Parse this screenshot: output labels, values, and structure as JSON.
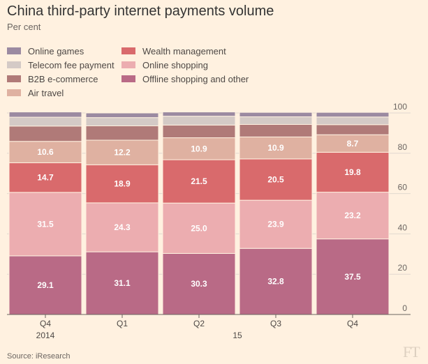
{
  "title": "China third-party internet payments volume",
  "subtitle": "Per cent",
  "source": "Source: iResearch",
  "logo": "FT",
  "chart_data": {
    "type": "bar",
    "stacked": true,
    "title": "China third-party internet payments volume",
    "ylabel": "Per cent",
    "ylim": [
      0,
      100
    ],
    "yticks": [
      0,
      20,
      40,
      60,
      80,
      100
    ],
    "categories": [
      "Q4",
      "Q1",
      "Q2",
      "Q3",
      "Q4"
    ],
    "period_labels": [
      "2014",
      "15"
    ],
    "legend": [
      {
        "name": "Online games",
        "color": "#9b8aa1"
      },
      {
        "name": "Telecom fee payment",
        "color": "#d4cac6"
      },
      {
        "name": "B2B e-commerce",
        "color": "#b07a78"
      },
      {
        "name": "Air travel",
        "color": "#dfb1a1"
      },
      {
        "name": "Wealth management",
        "color": "#d96a6c"
      },
      {
        "name": "Online shopping",
        "color": "#ecadb0"
      },
      {
        "name": "Offline shopping and other",
        "color": "#b96a86"
      }
    ],
    "series": [
      {
        "name": "Offline shopping and other",
        "color": "#b96a86",
        "values": [
          29.1,
          31.1,
          30.3,
          32.8,
          37.5
        ],
        "labeled": true
      },
      {
        "name": "Online shopping",
        "color": "#ecadb0",
        "values": [
          31.5,
          24.3,
          25.0,
          23.9,
          23.2
        ],
        "labeled": true
      },
      {
        "name": "Wealth management",
        "color": "#d96a6c",
        "values": [
          14.7,
          18.9,
          21.5,
          20.5,
          19.8
        ],
        "labeled": true
      },
      {
        "name": "Air travel",
        "color": "#dfb1a1",
        "values": [
          10.6,
          12.2,
          10.9,
          10.9,
          8.7
        ],
        "labeled": true
      },
      {
        "name": "B2B e-commerce",
        "color": "#b07a78",
        "values": [
          7.6,
          7.1,
          6.3,
          6.2,
          5.0
        ],
        "labeled": false
      },
      {
        "name": "Telecom fee payment",
        "color": "#d4cac6",
        "values": [
          4.4,
          4.1,
          4.4,
          3.8,
          3.8
        ],
        "labeled": false
      },
      {
        "name": "Online games",
        "color": "#9b8aa1",
        "values": [
          2.6,
          2.3,
          2.1,
          2.2,
          2.3
        ],
        "labeled": false
      }
    ]
  }
}
